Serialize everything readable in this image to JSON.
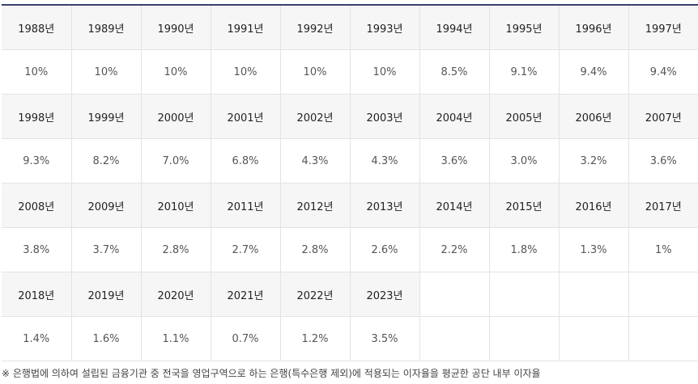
{
  "rows": [
    {
      "years": [
        "1988년",
        "1989년",
        "1990년",
        "1991년",
        "1992년",
        "1993년",
        "1994년",
        "1995년",
        "1996년",
        "1997년"
      ],
      "values": [
        "10%",
        "10%",
        "10%",
        "10%",
        "10%",
        "10%",
        "8.5%",
        "9.1%",
        "9.4%",
        "9.4%"
      ]
    },
    {
      "years": [
        "1998년",
        "1999년",
        "2000년",
        "2001년",
        "2002년",
        "2003년",
        "2004년",
        "2005년",
        "2006년",
        "2007년"
      ],
      "values": [
        "9.3%",
        "8.2%",
        "7.0%",
        "6.8%",
        "4.3%",
        "4.3%",
        "3.6%",
        "3.0%",
        "3.2%",
        "3.6%"
      ]
    },
    {
      "years": [
        "2008년",
        "2009년",
        "2010년",
        "2011년",
        "2012년",
        "2013년",
        "2014년",
        "2015년",
        "2016년",
        "2017년"
      ],
      "values": [
        "3.8%",
        "3.7%",
        "2.8%",
        "2.7%",
        "2.8%",
        "2.6%",
        "2.2%",
        "1.8%",
        "1.3%",
        "1%"
      ]
    },
    {
      "years": [
        "2018년",
        "2019년",
        "2020년",
        "2021년",
        "2022년",
        "2023년",
        "",
        "",
        "",
        ""
      ],
      "values": [
        "1.4%",
        "1.6%",
        "1.1%",
        "0.7%",
        "1.2%",
        "3.5%",
        "",
        "",
        "",
        ""
      ]
    }
  ],
  "note": "※ 은행법에 의하여 설립된 금융기관 중 전국을 영업구역으로 하는 은행(특수은행 제외)에 적용되는 이자율을 평균한 공단 내부 이자율"
}
